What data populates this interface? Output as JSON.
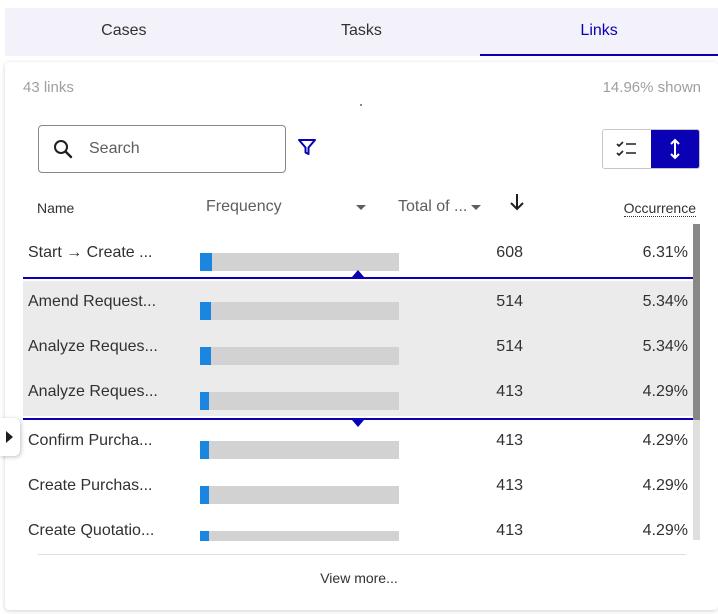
{
  "tabs": [
    {
      "label": "Cases",
      "active": false
    },
    {
      "label": "Tasks",
      "active": false
    },
    {
      "label": "Links",
      "active": true
    }
  ],
  "summary": {
    "count": "43 links",
    "shown": "14.96% shown"
  },
  "search": {
    "placeholder": "Search",
    "value": ""
  },
  "columns": {
    "name": "Name",
    "frequency": "Frequency",
    "total": "Total of ...",
    "occurrence": "Occurrence"
  },
  "rows": [
    {
      "name": "Start → Create ...",
      "frequency_fraction": 0.06,
      "total": "608",
      "occurrence": "6.31%",
      "selected": false
    },
    {
      "name": "Amend Request...",
      "frequency_fraction": 0.055,
      "total": "514",
      "occurrence": "5.34%",
      "selected": true
    },
    {
      "name": "Analyze Reques...",
      "frequency_fraction": 0.055,
      "total": "514",
      "occurrence": "5.34%",
      "selected": true
    },
    {
      "name": "Analyze Reques...",
      "frequency_fraction": 0.045,
      "total": "413",
      "occurrence": "4.29%",
      "selected": true
    },
    {
      "name": "Confirm Purcha...",
      "frequency_fraction": 0.045,
      "total": "413",
      "occurrence": "4.29%",
      "selected": false
    },
    {
      "name": "Create Purchas...",
      "frequency_fraction": 0.045,
      "total": "413",
      "occurrence": "4.29%",
      "selected": false
    },
    {
      "name": "Create Quotatio...",
      "frequency_fraction": 0.045,
      "total": "413",
      "occurrence": "4.29%",
      "selected": false
    }
  ],
  "footer": {
    "view_more": "View more..."
  },
  "colors": {
    "accent": "#0a00b4",
    "bar": "#1a86e0",
    "bar_track": "#d2d2d2",
    "selected_bg": "#ebebeb"
  },
  "icons": {
    "search": "search-icon",
    "filter": "filter-icon",
    "list_view": "checklist-icon",
    "sort": "vertical-arrows-icon",
    "sort_direction": "arrow-down-icon",
    "expand": "caret-right-icon"
  }
}
